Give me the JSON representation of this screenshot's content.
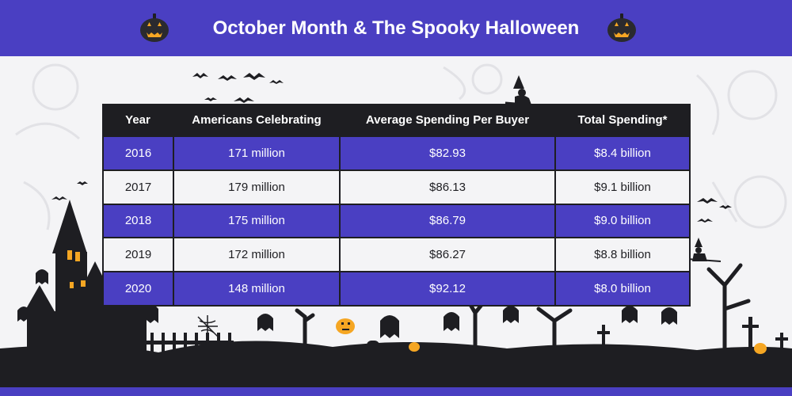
{
  "header": {
    "title": "October Month & The Spooky Halloween",
    "icon": "jack-o-lantern-icon"
  },
  "colors": {
    "brand_purple": "#4a3fc2",
    "dark": "#1e1e22",
    "background": "#f4f4f6",
    "pumpkin": "#2a2a2e",
    "accent_orange": "#f5a623"
  },
  "chart_data": {
    "type": "table",
    "columns": [
      "Year",
      "Americans Celebrating",
      "Average Spending Per Buyer",
      "Total Spending*"
    ],
    "rows": [
      [
        "2016",
        "171 million",
        "$82.93",
        "$8.4 billion"
      ],
      [
        "2017",
        "179 million",
        "$86.13",
        "$9.1 billion"
      ],
      [
        "2018",
        "175 million",
        "$86.79",
        "$9.0 billion"
      ],
      [
        "2019",
        "172 million",
        "$86.27",
        "$8.8 billion"
      ],
      [
        "2020",
        "148 million",
        "$92.12",
        "$8.0 billion"
      ]
    ]
  }
}
